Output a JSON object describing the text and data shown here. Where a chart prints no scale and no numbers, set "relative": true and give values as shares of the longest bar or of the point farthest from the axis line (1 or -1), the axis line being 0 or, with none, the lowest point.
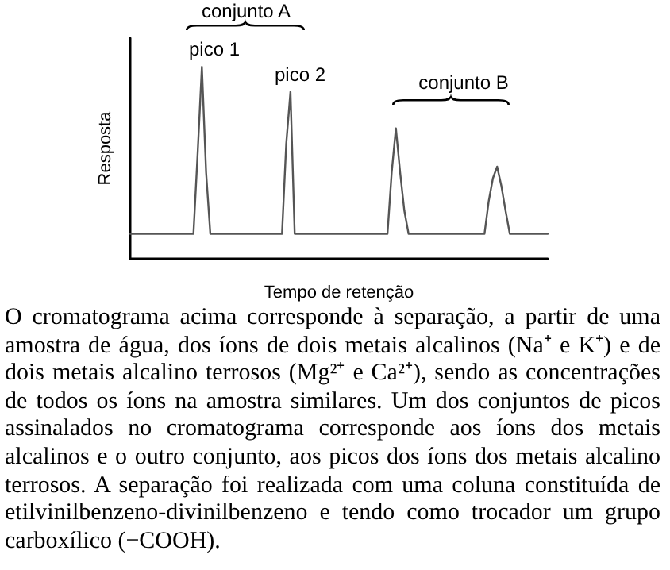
{
  "chart_data": {
    "type": "line",
    "relative": true,
    "xlabel": "Tempo de retenção",
    "ylabel": "Resposta",
    "marker": "none",
    "line_style": "solid",
    "categories": [
      null,
      null,
      null,
      null,
      null,
      null,
      null,
      null,
      null,
      null,
      null,
      null,
      null,
      null,
      null,
      null,
      null,
      null,
      null,
      null,
      null,
      null,
      null,
      null,
      null,
      null,
      null,
      null,
      null,
      null,
      null,
      null,
      null,
      null,
      null,
      null,
      null,
      null,
      null,
      null,
      null,
      null,
      null,
      null,
      null,
      null,
      null,
      null,
      null,
      null,
      null,
      null,
      null,
      null,
      null,
      null,
      null,
      null,
      null,
      null,
      null,
      null,
      null,
      null,
      null,
      null,
      null,
      null,
      null,
      null,
      null,
      null,
      null,
      null,
      null,
      null,
      null,
      null,
      null,
      null,
      null,
      null,
      null,
      null,
      null,
      null,
      null,
      null,
      null,
      null,
      null,
      null,
      null,
      null,
      null,
      null,
      null,
      null,
      null,
      null
    ],
    "series": [
      {
        "color": "#555555",
        "values": [
          0.13,
          0.13,
          0.13,
          0.13,
          0.13,
          0.13,
          0.13,
          0.13,
          0.13,
          0.13,
          0.13,
          0.13,
          0.13,
          0.13,
          0.13,
          0.13,
          0.55,
          1,
          0.45,
          0.13,
          0.13,
          0.13,
          0.13,
          0.13,
          0.13,
          0.13,
          0.13,
          0.13,
          0.13,
          0.13,
          0.13,
          0.13,
          0.13,
          0.13,
          0.13,
          0.13,
          0.13,
          0.6,
          0.87,
          0.13,
          0.13,
          0.13,
          0.13,
          0.13,
          0.13,
          0.13,
          0.13,
          0.13,
          0.13,
          0.13,
          0.13,
          0.13,
          0.13,
          0.13,
          0.13,
          0.13,
          0.13,
          0.13,
          0.13,
          0.13,
          0.13,
          0.13,
          0.45,
          0.68,
          0.45,
          0.25,
          0.13,
          0.13,
          0.13,
          0.13,
          0.13,
          0.13,
          0.13,
          0.13,
          0.13,
          0.13,
          0.13,
          0.13,
          0.13,
          0.13,
          0.13,
          0.13,
          0.13,
          0.13,
          0.13,
          0.3,
          0.42,
          0.48,
          0.38,
          0.25,
          0.13,
          0.13,
          0.13,
          0.13,
          0.13,
          0.13,
          0.13,
          0.13,
          0.13,
          0.13
        ]
      }
    ],
    "annotations": [
      "pico 1",
      "pico 2",
      "conjunto A",
      "conjunto B",
      "O cromatograma acima corresponde à separação, a partir de uma amostra de água, dos íons de dois metais alcalinos (Na⁺ e K⁺) e de dois metais alcalino terrosos (Mg²⁺ e Ca²⁺), sendo as concentrações de todos os íons na amostra similares. Um dos conjuntos de picos assinalados no cromatograma corresponde aos íons dos metais alcalinos e o outro conjunto, aos picos dos íons dos metais alcalino terrosos. A separação foi realizada com uma coluna constituída de etilvinilbenzeno-divinilbenzeno e tendo como trocador um grupo carboxílico (−COOH)."
    ]
  }
}
